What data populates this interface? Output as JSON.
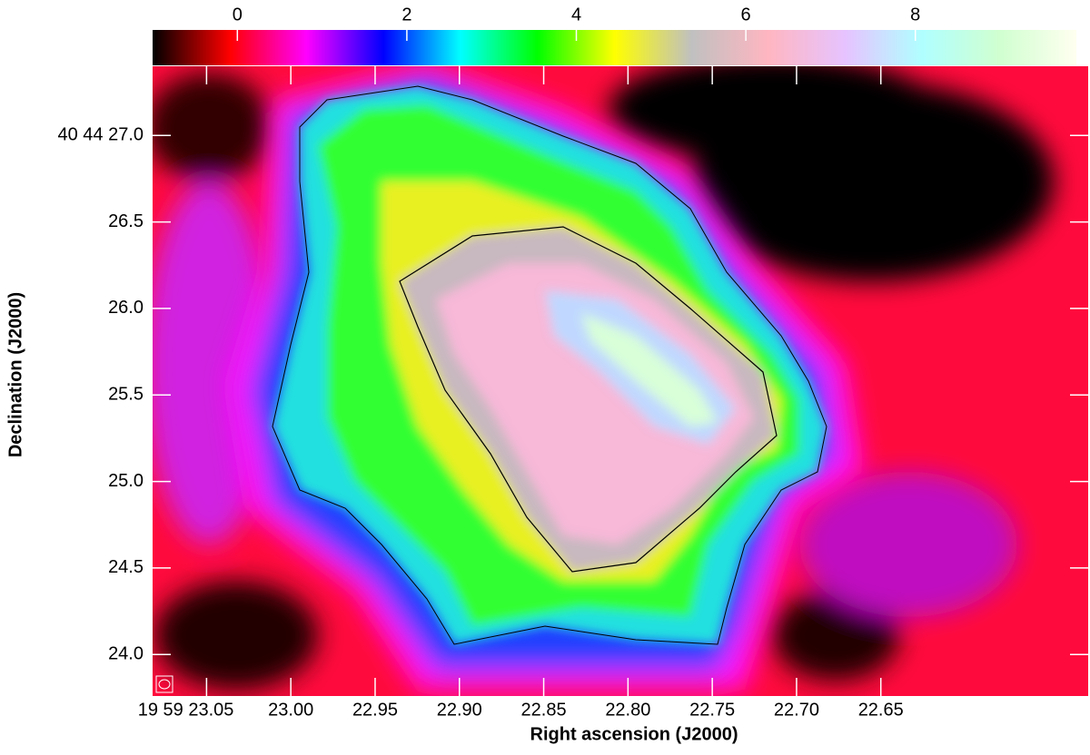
{
  "chart_data": {
    "type": "image",
    "colorbar": {
      "lim": [
        -1,
        9.9
      ],
      "ticks": [
        0,
        2,
        4,
        6,
        8
      ],
      "colormap": [
        "#000000",
        "#ff0000",
        "#ff00ff",
        "#0000ff",
        "#00ffff",
        "#00ff00",
        "#ffff00",
        "#c0c0c0",
        "#ffb6c1",
        "#e6c3ff",
        "#b0ffff",
        "#d0ffd0",
        "#fffff0"
      ]
    },
    "x_label": "Right ascension (J2000)",
    "y_label": "Declination (J2000)",
    "xlim": [
      23.082,
      22.527
    ],
    "xticks": [
      {
        "value": 23.05,
        "label": "19 59 23.05"
      },
      {
        "value": 23.0,
        "label": "23.00"
      },
      22.95,
      {
        "value": 22.9,
        "label": "22.90"
      },
      22.85,
      {
        "value": 22.8,
        "label": "22.80"
      },
      22.75,
      {
        "value": 22.7,
        "label": "22.70"
      },
      22.65
    ],
    "ylim": [
      23.76,
      27.4
    ],
    "yticks": [
      {
        "value": 24.0,
        "label": "24.0"
      },
      24.5,
      {
        "value": 25.0,
        "label": "25.0"
      },
      25.5,
      {
        "value": 26.0,
        "label": "26.0"
      },
      26.5,
      {
        "value": 27.0,
        "label": "40 44 27.0"
      }
    ]
  }
}
